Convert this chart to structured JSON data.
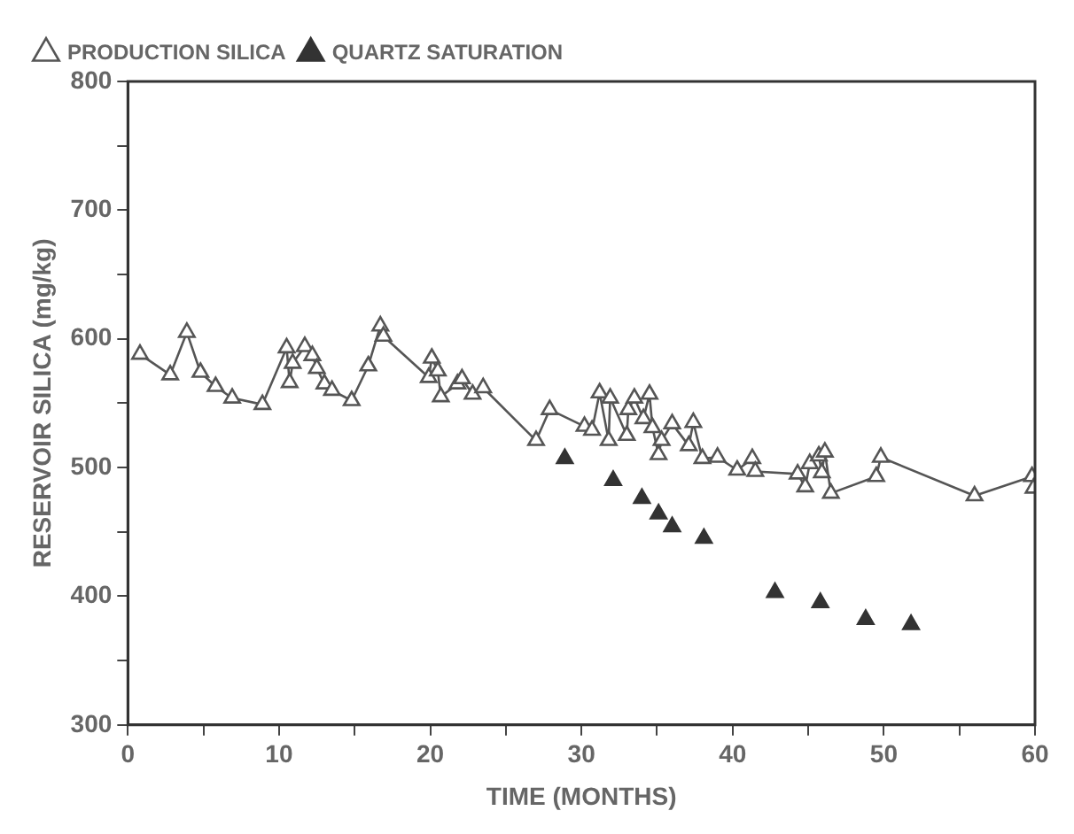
{
  "chart_data": {
    "type": "line",
    "xlabel": "TIME (MONTHS)",
    "ylabel": "RESERVOIR SILICA (mg/kg)",
    "xlim": [
      0,
      60
    ],
    "xticks": [
      0,
      {
        "value": 5,
        "label": null
      },
      10,
      {
        "value": 15,
        "label": null
      },
      20,
      {
        "value": 25,
        "label": null
      },
      30,
      {
        "value": 35,
        "label": null
      },
      40,
      {
        "value": 45,
        "label": null
      },
      50,
      {
        "value": 55,
        "label": null
      },
      60
    ],
    "ylim": [
      300,
      800
    ],
    "yticks": [
      300,
      {
        "value": 350,
        "label": null
      },
      400,
      {
        "value": 450,
        "label": null
      },
      500,
      {
        "value": 550,
        "label": null
      },
      600,
      {
        "value": 650,
        "label": null
      },
      700,
      {
        "value": 750,
        "label": null
      },
      800
    ],
    "grid": false,
    "legend": "top left",
    "marker": "triangle",
    "line_style": "solid",
    "series": [
      {
        "name": "PRODUCTION SILICA",
        "color": "#555555",
        "type": "line",
        "x": [
          0.8,
          2.8,
          3.9,
          4.8,
          5.8,
          6.9,
          8.9,
          10.5,
          10.7,
          10.9,
          11.7,
          12.2,
          12.5,
          13.0,
          13.5,
          14.8,
          15.9,
          16.7,
          16.9,
          19.9,
          20.1,
          20.5,
          20.7,
          21.8,
          22.1,
          22.8,
          23.5,
          27.0,
          27.9,
          30.2,
          30.7,
          31.2,
          31.8,
          31.9,
          33.0,
          33.1,
          33.5,
          34.1,
          34.5,
          34.7,
          35.1,
          35.3,
          36.0,
          37.1,
          37.4,
          38.0,
          39.0,
          40.3,
          41.3,
          41.5,
          44.3,
          44.8,
          45.1,
          45.7,
          45.9,
          46.1,
          46.5,
          49.5,
          49.8,
          56.0,
          59.8,
          59.9
        ],
        "values": [
          588,
          572,
          605,
          574,
          563,
          554,
          549,
          593,
          566,
          581,
          594,
          587,
          577,
          565,
          560,
          552,
          579,
          610,
          602,
          570,
          585,
          575,
          555,
          565,
          569,
          557,
          562,
          521,
          545,
          532,
          529,
          558,
          521,
          554,
          525,
          545,
          554,
          538,
          557,
          531,
          510,
          521,
          534,
          517,
          535,
          507,
          508,
          498,
          507,
          497,
          495,
          485,
          503,
          509,
          496,
          512,
          480,
          493,
          508,
          478,
          493,
          484
        ]
      },
      {
        "name": "QUARTZ SATURATION",
        "color": "#333333",
        "type": "scatter",
        "x": [
          28.9,
          32.1,
          34.0,
          35.1,
          36.0,
          38.1,
          42.8,
          45.8,
          48.8,
          51.8
        ],
        "values": [
          507,
          490,
          476,
          464,
          454,
          445,
          403,
          395,
          382,
          378
        ]
      }
    ]
  }
}
